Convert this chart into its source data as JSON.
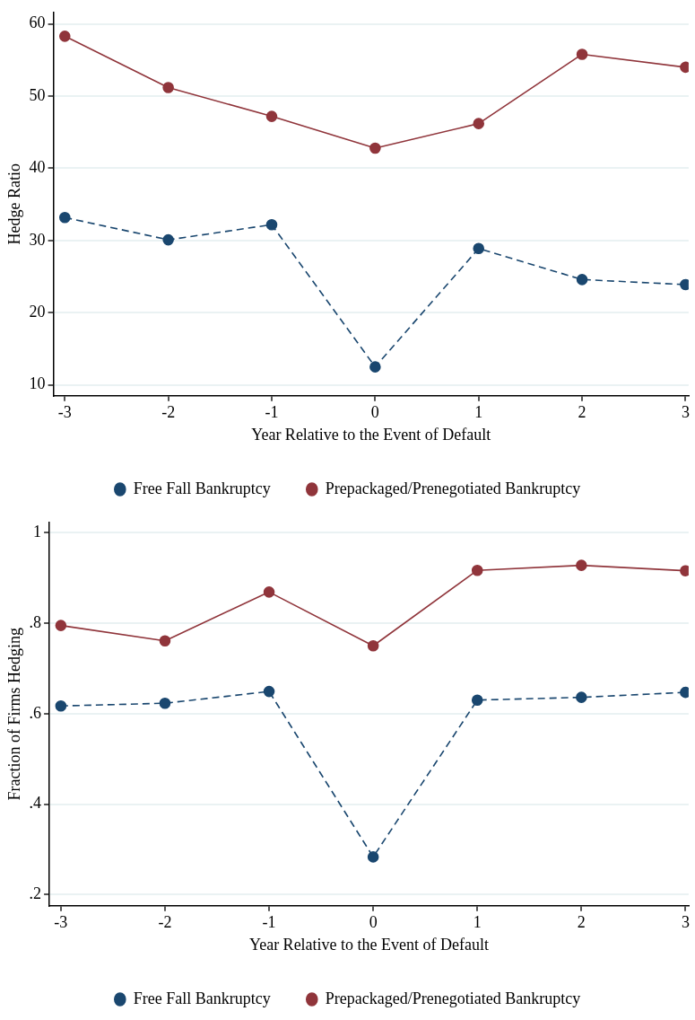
{
  "chart_data": [
    {
      "type": "line",
      "xlabel": "Year Relative to the Event of Default",
      "ylabel": "Hedge Ratio",
      "x": [
        -3,
        -2,
        -1,
        0,
        1,
        2,
        3
      ],
      "xlim": [
        -3.11,
        3.03
      ],
      "xticks": [
        -3,
        -2,
        -1,
        0,
        1,
        2,
        3
      ],
      "ylim": [
        8.5,
        61.6
      ],
      "yticks": [
        10,
        20,
        30,
        40,
        50,
        60
      ],
      "grid": "y",
      "legend": "bottom",
      "marker": "circle",
      "series": [
        {
          "name": "Free Fall Bankruptcy",
          "color": "#1a476f",
          "line_style": "dashed",
          "values": [
            33.2,
            30.1,
            32.2,
            12.5,
            28.9,
            24.6,
            23.9
          ]
        },
        {
          "name": "Prepackaged/Prenegotiated Bankruptcy",
          "color": "#90353b",
          "line_style": "solid",
          "values": [
            58.3,
            51.2,
            47.2,
            42.8,
            46.2,
            55.8,
            54.0
          ]
        }
      ]
    },
    {
      "type": "line",
      "xlabel": "Year Relative to the Event of Default",
      "ylabel": "Fraction of Firms Hedging",
      "x": [
        -3,
        -2,
        -1,
        0,
        1,
        2,
        3
      ],
      "xlim": [
        -3.11,
        3.03
      ],
      "xticks": [
        -3,
        -2,
        -1,
        0,
        1,
        2,
        3
      ],
      "ylim": [
        0.175,
        1.023
      ],
      "yticks": [
        {
          "value": 0.2,
          "label": ".2"
        },
        {
          "value": 0.4,
          "label": ".4"
        },
        {
          "value": 0.6,
          "label": ".6"
        },
        {
          "value": 0.8,
          "label": ".8"
        },
        {
          "value": 1,
          "label": "1"
        }
      ],
      "grid": "y",
      "legend": "bottom",
      "marker": "circle",
      "series": [
        {
          "name": "Free Fall Bankruptcy",
          "color": "#1a476f",
          "line_style": "dashed",
          "values": [
            0.617,
            0.623,
            0.649,
            0.283,
            0.63,
            0.636,
            0.647
          ]
        },
        {
          "name": "Prepackaged/Prenegotiated Bankruptcy",
          "color": "#90353b",
          "line_style": "solid",
          "values": [
            0.795,
            0.761,
            0.869,
            0.75,
            0.917,
            0.928,
            0.916
          ]
        }
      ]
    }
  ]
}
